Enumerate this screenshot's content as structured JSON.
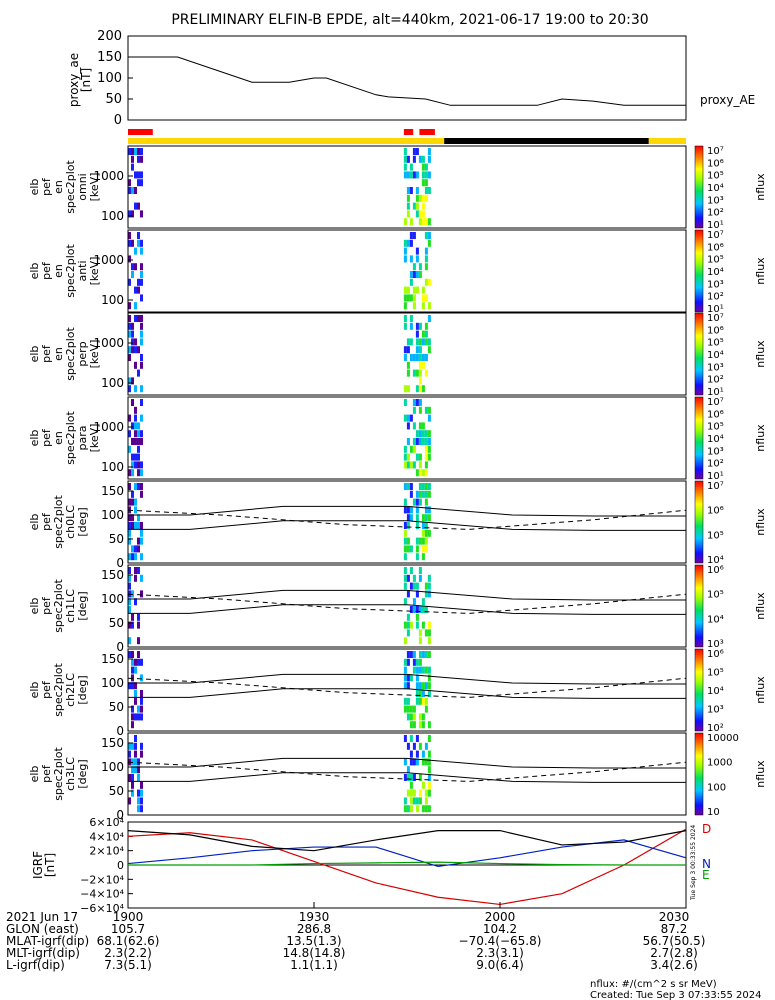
{
  "title": "PRELIMINARY ELFIN-B EPDE, alt=440km, 2021-06-17 19:00 to 20:30",
  "chart_data": [
    {
      "type": "line",
      "panel": "proxy_ae",
      "ylabel_lines": [
        "proxy_ae",
        "[nT]"
      ],
      "series_label": "proxy_AE",
      "ylim": [
        0,
        200
      ],
      "yticks": [
        "0",
        "50",
        "100",
        "150",
        "200"
      ],
      "x_minutes": [
        0,
        8,
        14,
        20,
        26,
        30,
        32,
        40,
        42,
        48,
        52,
        58,
        66,
        70,
        75,
        80,
        90
      ],
      "values": [
        150,
        150,
        120,
        90,
        90,
        100,
        100,
        60,
        55,
        50,
        35,
        35,
        35,
        50,
        45,
        35,
        35
      ]
    },
    {
      "type": "bar",
      "panel": "status-bar",
      "segments": [
        {
          "from_min": 0,
          "to_min": 51,
          "state": "yellow"
        },
        {
          "from_min": 51,
          "to_min": 84,
          "state": "black"
        },
        {
          "from_min": 84,
          "to_min": 90,
          "state": "yellow"
        }
      ],
      "markers_min": [
        [
          0,
          4
        ],
        [
          44.5,
          46
        ],
        [
          47,
          49.5
        ]
      ],
      "colors": {
        "yellow": "#ffd700",
        "black": "#000000",
        "marker": "#ff0000"
      }
    },
    {
      "type": "heatmap",
      "panels": [
        {
          "label_lines": [
            "elb",
            "pef",
            "en",
            "spec2plot",
            "omni",
            "[keV]"
          ],
          "yticks": [
            "1000",
            "100"
          ],
          "cbar_ticks": [
            "10⁷",
            "10⁶",
            "10⁵",
            "10⁴",
            "10³",
            "10²",
            "10¹"
          ]
        },
        {
          "label_lines": [
            "elb",
            "pef",
            "en",
            "spec2plot",
            "anti",
            "[keV]"
          ],
          "yticks": [
            "1000",
            "100"
          ],
          "cbar_ticks": [
            "10⁷",
            "10⁶",
            "10⁵",
            "10⁴",
            "10³",
            "10²",
            "10¹"
          ]
        },
        {
          "label_lines": [
            "elb",
            "pef",
            "en",
            "spec2plot",
            "perp",
            "[keV]"
          ],
          "yticks": [
            "1000",
            "100"
          ],
          "cbar_ticks": [
            "10⁷",
            "10⁶",
            "10⁵",
            "10⁴",
            "10³",
            "10²",
            "10¹"
          ]
        },
        {
          "label_lines": [
            "elb",
            "pef",
            "en",
            "spec2plot",
            "para",
            "[keV]"
          ],
          "yticks": [
            "1000",
            "100"
          ],
          "cbar_ticks": [
            "10⁷",
            "10⁶",
            "10⁵",
            "10⁴",
            "10³",
            "10²",
            "10¹"
          ]
        },
        {
          "label_lines": [
            "elb",
            "pef",
            "spec2plot",
            "ch0LC",
            "[deg]"
          ],
          "yticks": [
            "150",
            "100",
            "50",
            "0"
          ],
          "cbar_ticks": [
            "10⁷",
            "10⁶",
            "10⁵",
            "10⁴"
          ]
        },
        {
          "label_lines": [
            "elb",
            "pef",
            "spec2plot",
            "ch1LC",
            "[deg]"
          ],
          "yticks": [
            "150",
            "100",
            "50",
            "0"
          ],
          "cbar_ticks": [
            "10⁶",
            "10⁵",
            "10⁴",
            "10³"
          ]
        },
        {
          "label_lines": [
            "elb",
            "pef",
            "spec2plot",
            "ch2LC",
            "[deg]"
          ],
          "yticks": [
            "150",
            "100",
            "50",
            "0"
          ],
          "cbar_ticks": [
            "10⁶",
            "10⁵",
            "10⁴",
            "10³",
            "10²"
          ]
        },
        {
          "label_lines": [
            "elb",
            "pef",
            "spec2plot",
            "ch3LC",
            "[deg]"
          ],
          "yticks": [
            "150",
            "100",
            "50",
            "0"
          ],
          "cbar_ticks": [
            "10000",
            "1000",
            "100",
            "10"
          ]
        }
      ],
      "cbar_label": "nflux",
      "burst_windows_min": [
        [
          0,
          2.5
        ],
        [
          44.5,
          49
        ]
      ]
    },
    {
      "type": "line",
      "panel": "IGRF",
      "ylabel_lines": [
        "IGRF",
        "[nT]"
      ],
      "yticks": [
        "6×10⁴",
        "4×10⁴",
        "2×10⁴",
        "0",
        "−2×10⁴",
        "−4×10⁴",
        "−6×10⁴"
      ],
      "ylim": [
        -60000,
        60000
      ],
      "x_minutes": [
        0,
        10,
        20,
        30,
        40,
        50,
        60,
        70,
        80,
        90
      ],
      "series": [
        {
          "name": "D",
          "color": "#d40000",
          "values": [
            40000,
            45000,
            35000,
            5000,
            -25000,
            -45000,
            -55000,
            -40000,
            0,
            50000
          ]
        },
        {
          "name": "N",
          "color": "#0020c0",
          "values": [
            2000,
            10000,
            20000,
            25000,
            25000,
            -2000,
            10000,
            25000,
            35000,
            10000
          ]
        },
        {
          "name": "E",
          "color": "#00a000",
          "values": [
            0,
            0,
            0,
            2000,
            3000,
            4000,
            2000,
            500,
            0,
            0
          ]
        },
        {
          "name": "",
          "color": "#000000",
          "values": [
            48000,
            42000,
            26000,
            20000,
            35000,
            48000,
            48000,
            28000,
            32000,
            48000
          ]
        }
      ],
      "vertical_text": "Tue Sep  3 00:33:55 2024"
    }
  ],
  "xticks": [
    "1900",
    "1930",
    "2000",
    "2030"
  ],
  "ephemeris": {
    "rows": [
      {
        "label": "2021 Jun 17",
        "v1900": "1900",
        "v1930": "1930",
        "v2000": "2000",
        "v2030": "2030"
      },
      {
        "label": "GLON (east)",
        "v1900": "105.7",
        "v1930": "286.8",
        "v2000": "104.2",
        "v2030": "87.2"
      },
      {
        "label": "MLAT-igrf(dip)",
        "v1900": "68.1(62.6)",
        "v1930": "13.5(1.3)",
        "v2000": "−70.4(−65.8)",
        "v2030": "56.7(50.5)"
      },
      {
        "label": "MLT-igrf(dip)",
        "v1900": "2.3(2.2)",
        "v1930": "14.8(14.8)",
        "v2000": "2.3(3.1)",
        "v2030": "2.7(2.8)"
      },
      {
        "label": "L-igrf(dip)",
        "v1900": "7.3(5.1)",
        "v1930": "1.1(1.1)",
        "v2000": "9.0(6.4)",
        "v2030": "3.4(2.6)"
      }
    ]
  },
  "footer": {
    "units": "nflux: #/(cm^2 s sr MeV)",
    "created": "Created: Tue Sep  3 07:33:55 2024"
  }
}
